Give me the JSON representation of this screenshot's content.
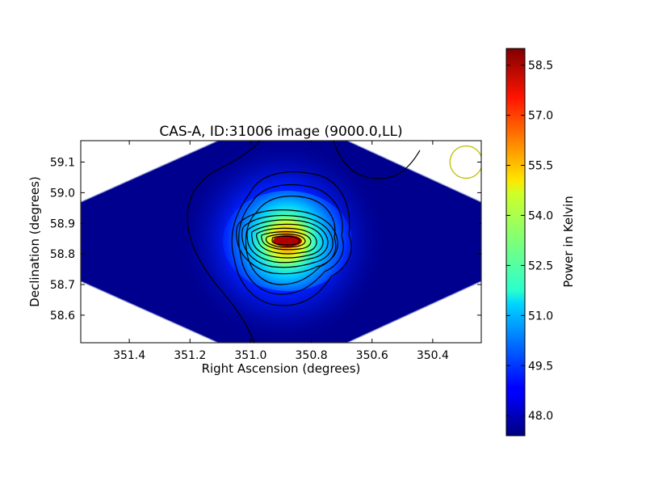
{
  "chart_data": {
    "type": "heatmap",
    "title": "CAS-A, ID:31006 image (9000.0,LL)",
    "xlabel": "Right Ascension (degrees)",
    "ylabel": "Declination (degrees)",
    "xlim": [
      351.56,
      350.24
    ],
    "ylim": [
      58.51,
      59.17
    ],
    "x_inverted": true,
    "x_ticks": [
      351.4,
      351.2,
      351.0,
      350.8,
      350.6,
      350.4
    ],
    "x_tick_labels": [
      "351.4",
      "351.2",
      "351.0",
      "350.8",
      "350.6",
      "350.4"
    ],
    "y_ticks": [
      58.6,
      58.7,
      58.8,
      58.9,
      59.0,
      59.1
    ],
    "y_tick_labels": [
      "58.6",
      "58.7",
      "58.8",
      "58.9",
      "59.0",
      "59.1"
    ],
    "colorbar": {
      "label": "Power in Kelvin",
      "range": [
        47.4,
        59.0
      ],
      "colormap": "jet",
      "ticks": [
        48.0,
        49.5,
        51.0,
        52.5,
        54.0,
        55.5,
        57.0,
        58.5
      ],
      "tick_labels": [
        "48.0",
        "49.5",
        "51.0",
        "52.5",
        "54.0",
        "55.5",
        "57.0",
        "58.5"
      ]
    },
    "source": {
      "peak_ra": 350.87,
      "peak_dec": 58.835,
      "peak_value": 59.0,
      "background_value": 47.5
    },
    "beam_marker": {
      "ra": 350.29,
      "dec": 59.1,
      "color": "#bfbf00"
    },
    "grid": false
  }
}
